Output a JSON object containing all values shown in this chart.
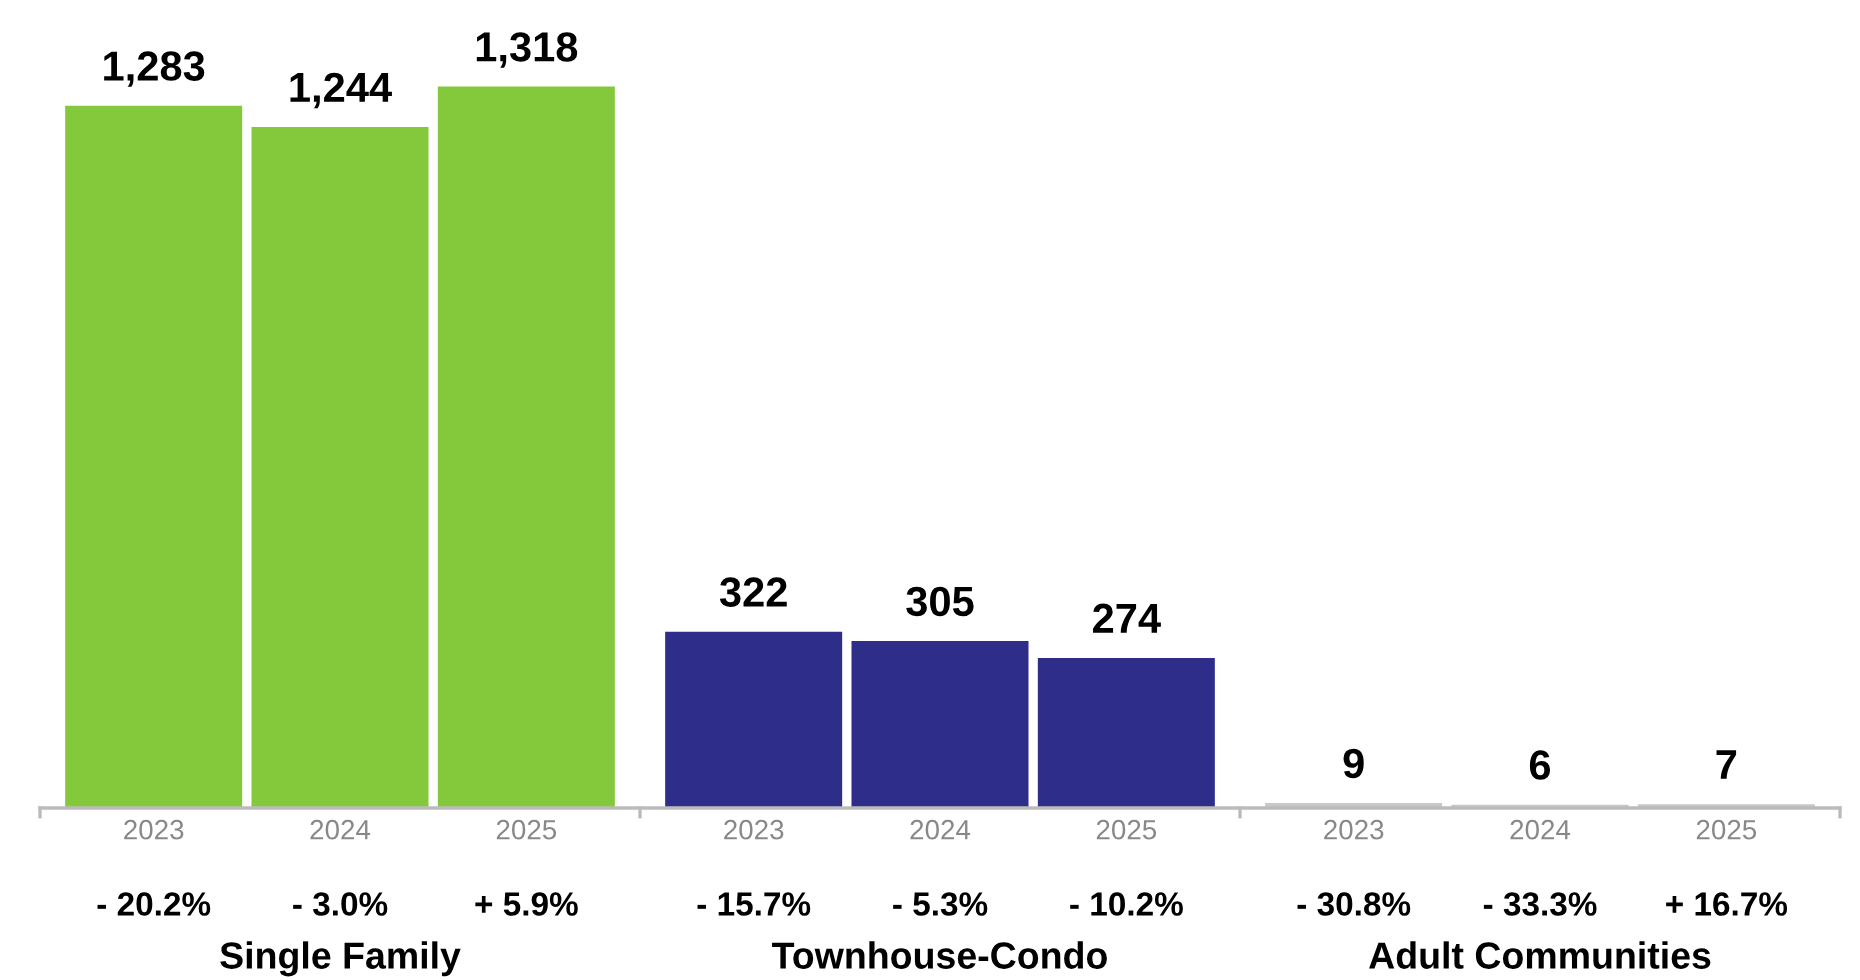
{
  "chart_data": {
    "type": "bar",
    "categories": [
      "2023",
      "2024",
      "2025",
      "2023",
      "2024",
      "2025",
      "2023",
      "2024",
      "2025"
    ],
    "values": [
      1283,
      1244,
      1318,
      322,
      305,
      274,
      9,
      6,
      7
    ],
    "value_labels": [
      "1,283",
      "1,244",
      "1,318",
      "322",
      "305",
      "274",
      "9",
      "6",
      "7"
    ],
    "colors": [
      "#84c93c",
      "#84c93c",
      "#84c93c",
      "#2e2e8a",
      "#2e2e8a",
      "#2e2e8a",
      "#c8c8c8",
      "#c8c8c8",
      "#c8c8c8"
    ],
    "annotations": [
      "- 20.2%",
      "- 3.0%",
      "+ 5.9%",
      "- 15.7%",
      "- 5.3%",
      "- 10.2%",
      "- 30.8%",
      "- 33.3%",
      "+ 16.7%",
      "Single Family",
      "Townhouse-Condo",
      "Adult Communities"
    ],
    "grid": false,
    "legend": false
  }
}
